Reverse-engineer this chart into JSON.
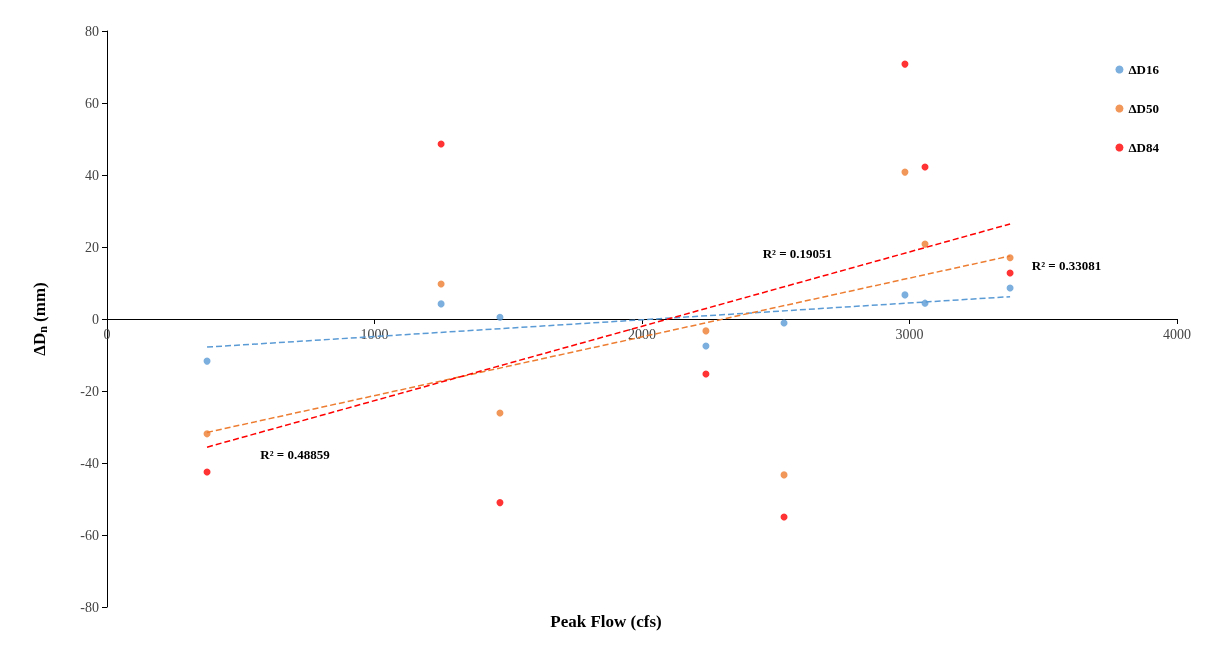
{
  "chart_data": {
    "type": "scatter",
    "xlabel": "Peak Flow (cfs)",
    "ylabel": "ΔD$_{n}$ (mm)",
    "xlim": [
      0,
      4000
    ],
    "xticks": [
      0,
      1000,
      2000,
      3000,
      4000
    ],
    "ylim": [
      -80,
      80
    ],
    "yticks": [
      -80,
      -60,
      -40,
      -20,
      0,
      20,
      40,
      60,
      80
    ],
    "grid": false,
    "legend": "top right",
    "marker": "circle",
    "series": [
      {
        "name": "ΔD16",
        "color": "#5b9bd5",
        "x": [
          374,
          1249,
          1469,
          2239,
          2531,
          2983,
          3058,
          3376
        ],
        "values": [
          -11.7,
          4.2,
          0.5,
          -7.5,
          -1.1,
          6.7,
          4.4,
          8.6
        ]
      },
      {
        "name": "ΔD50",
        "color": "#ed7d31",
        "x": [
          374,
          1249,
          1469,
          2239,
          2531,
          2983,
          3058,
          3376
        ],
        "values": [
          -31.9,
          9.7,
          -26.1,
          -3.3,
          -43.3,
          40.8,
          20.8,
          17
        ]
      },
      {
        "name": "ΔD84",
        "color": "#ff0000",
        "x": [
          374,
          1249,
          1469,
          2239,
          2531,
          2983,
          3058,
          3376
        ],
        "values": [
          -42.5,
          48.6,
          -51,
          -15.3,
          -55,
          70.8,
          42.2,
          12.8
        ]
      },
      {
        "type": "line",
        "color": "#5b9bd5",
        "line_style": "dashed",
        "marker": "none",
        "x": [
          374,
          3376
        ],
        "values": [
          -7.8,
          6.2
        ]
      },
      {
        "type": "line",
        "color": "#ed7d31",
        "line_style": "dashed",
        "marker": "none",
        "x": [
          374,
          3376
        ],
        "values": [
          -31.5,
          17.5
        ]
      },
      {
        "type": "line",
        "color": "#ff0000",
        "line_style": "dashed",
        "marker": "none",
        "x": [
          374,
          3376
        ],
        "values": [
          -35.6,
          26.4
        ]
      }
    ],
    "annotations": [
      "R² = 0.19051",
      "R² = 0.33081",
      "R² = 0.48859"
    ]
  }
}
